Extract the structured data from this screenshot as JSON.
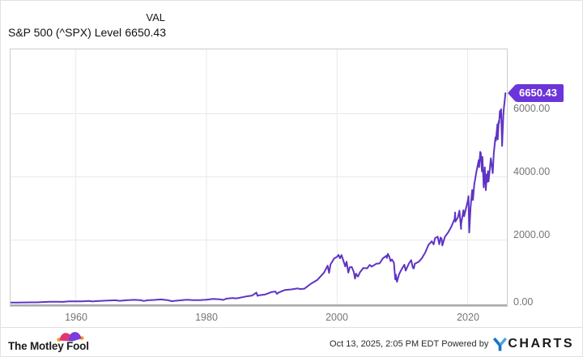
{
  "header": {
    "column_label": "VAL",
    "series_name": "S&P 500 (^SPX) Level",
    "value": "6650.43"
  },
  "footer": {
    "brand": "The Motley Fool",
    "timestamp": "Oct 13, 2025, 2:05 PM EDT",
    "powered_by": "Powered by",
    "ycharts_y": "Y",
    "ycharts_rest": "CHARTS"
  },
  "colors": {
    "line": "#5f34c4",
    "tag_bg": "#6c35d9",
    "grid": "#e9e9e9",
    "plot_border": "#cccccc",
    "axis_line": "#aaaaaa",
    "axis_text": "#757575",
    "fool_pink": "#e2356f",
    "fool_purple": "#7d3bd8",
    "fool_gold": "#f9a11b",
    "ycharts_blue": "#1873c9"
  },
  "chart_data": {
    "type": "line",
    "title": "S&P 500 (^SPX) Level",
    "xlabel": "",
    "ylabel": "",
    "x_domain": [
      1950,
      2026
    ],
    "y_domain": [
      0,
      8100
    ],
    "x_ticks": [
      1960,
      1980,
      2000,
      2020
    ],
    "y_ticks": [
      0,
      2000,
      4000,
      6000
    ],
    "y_tick_labels": [
      "0.00",
      "2000.00",
      "4000.00",
      "6000.00"
    ],
    "grid": true,
    "legend": false,
    "last_value_label": "6650.43",
    "points": [
      [
        1950.0,
        16.9
      ],
      [
        1951.0,
        20.4
      ],
      [
        1952.0,
        23.8
      ],
      [
        1953.0,
        26.6
      ],
      [
        1954.0,
        24.8
      ],
      [
        1955.0,
        36.0
      ],
      [
        1956.0,
        45.5
      ],
      [
        1957.0,
        46.7
      ],
      [
        1958.0,
        40.0
      ],
      [
        1959.0,
        55.2
      ],
      [
        1960.0,
        59.9
      ],
      [
        1961.0,
        58.1
      ],
      [
        1962.0,
        71.6
      ],
      [
        1962.55,
        54.8
      ],
      [
        1963.0,
        63.1
      ],
      [
        1964.0,
        75.0
      ],
      [
        1965.0,
        84.8
      ],
      [
        1966.0,
        92.4
      ],
      [
        1966.75,
        73.2
      ],
      [
        1967.0,
        80.3
      ],
      [
        1968.0,
        96.5
      ],
      [
        1969.0,
        103.9
      ],
      [
        1970.0,
        92.1
      ],
      [
        1970.4,
        69.3
      ],
      [
        1971.0,
        92.2
      ],
      [
        1972.0,
        102.1
      ],
      [
        1973.0,
        118.1
      ],
      [
        1974.0,
        97.6
      ],
      [
        1974.75,
        62.3
      ],
      [
        1975.0,
        68.6
      ],
      [
        1976.0,
        90.2
      ],
      [
        1977.0,
        107.5
      ],
      [
        1978.0,
        95.1
      ],
      [
        1979.0,
        96.1
      ],
      [
        1980.0,
        107.9
      ],
      [
        1981.0,
        135.8
      ],
      [
        1982.0,
        122.6
      ],
      [
        1982.6,
        102.4
      ],
      [
        1983.0,
        140.6
      ],
      [
        1984.0,
        164.9
      ],
      [
        1984.5,
        150.0
      ],
      [
        1985.0,
        167.2
      ],
      [
        1986.0,
        211.3
      ],
      [
        1987.0,
        242.2
      ],
      [
        1987.65,
        336.8
      ],
      [
        1987.82,
        230.3
      ],
      [
        1988.0,
        247.1
      ],
      [
        1989.0,
        277.7
      ],
      [
        1990.0,
        353.4
      ],
      [
        1990.55,
        368.9
      ],
      [
        1990.8,
        295.5
      ],
      [
        1991.0,
        330.2
      ],
      [
        1992.0,
        417.1
      ],
      [
        1993.0,
        435.7
      ],
      [
        1994.0,
        466.5
      ],
      [
        1994.3,
        445.8
      ],
      [
        1995.0,
        459.3
      ],
      [
        1996.0,
        615.9
      ],
      [
        1997.0,
        740.7
      ],
      [
        1998.0,
        970.4
      ],
      [
        1998.55,
        1186.8
      ],
      [
        1998.78,
        959.4
      ],
      [
        1999.0,
        1229.2
      ],
      [
        1999.55,
        1418.8
      ],
      [
        2000.0,
        1469.3
      ],
      [
        2000.22,
        1527.5
      ],
      [
        2000.45,
        1420.6
      ],
      [
        2000.68,
        1520.8
      ],
      [
        2001.0,
        1320.3
      ],
      [
        2001.25,
        1160.3
      ],
      [
        2001.45,
        1312.8
      ],
      [
        2001.72,
        965.8
      ],
      [
        2001.95,
        1139.5
      ],
      [
        2002.25,
        1147.4
      ],
      [
        2002.55,
        989.8
      ],
      [
        2002.75,
        776.8
      ],
      [
        2002.9,
        936.3
      ],
      [
        2003.2,
        841.2
      ],
      [
        2003.5,
        974.5
      ],
      [
        2004.0,
        1111.9
      ],
      [
        2004.6,
        1101.7
      ],
      [
        2005.0,
        1211.9
      ],
      [
        2005.3,
        1156.9
      ],
      [
        2006.0,
        1248.3
      ],
      [
        2006.5,
        1260.0
      ],
      [
        2007.0,
        1418.3
      ],
      [
        2007.55,
        1503.4
      ],
      [
        2007.62,
        1433.1
      ],
      [
        2007.78,
        1565.2
      ],
      [
        2008.0,
        1468.4
      ],
      [
        2008.2,
        1330.6
      ],
      [
        2008.4,
        1385.6
      ],
      [
        2008.7,
        1282.8
      ],
      [
        2008.85,
        896.2
      ],
      [
        2008.92,
        752.4
      ],
      [
        2009.0,
        903.3
      ],
      [
        2009.18,
        676.5
      ],
      [
        2009.5,
        919.3
      ],
      [
        2010.0,
        1115.1
      ],
      [
        2010.3,
        1217.3
      ],
      [
        2010.5,
        1030.7
      ],
      [
        2011.0,
        1257.6
      ],
      [
        2011.35,
        1363.6
      ],
      [
        2011.6,
        1119.5
      ],
      [
        2011.75,
        1099.2
      ],
      [
        2011.9,
        1253.3
      ],
      [
        2012.0,
        1257.6
      ],
      [
        2012.5,
        1310.0
      ],
      [
        2013.0,
        1426.2
      ],
      [
        2013.5,
        1606.3
      ],
      [
        2014.0,
        1848.4
      ],
      [
        2014.5,
        1960.2
      ],
      [
        2014.78,
        1862.5
      ],
      [
        2015.0,
        2058.9
      ],
      [
        2015.4,
        2107.4
      ],
      [
        2015.65,
        1867.6
      ],
      [
        2015.85,
        2079.4
      ],
      [
        2016.0,
        2043.9
      ],
      [
        2016.12,
        1829.1
      ],
      [
        2016.5,
        2098.9
      ],
      [
        2017.0,
        2238.8
      ],
      [
        2017.5,
        2423.4
      ],
      [
        2018.0,
        2673.6
      ],
      [
        2018.08,
        2872.9
      ],
      [
        2018.12,
        2581.0
      ],
      [
        2018.5,
        2718.4
      ],
      [
        2018.73,
        2930.8
      ],
      [
        2018.98,
        2351.1
      ],
      [
        2019.0,
        2506.9
      ],
      [
        2019.35,
        2945.8
      ],
      [
        2019.45,
        2752.1
      ],
      [
        2020.0,
        3230.8
      ],
      [
        2020.12,
        3386.2
      ],
      [
        2020.23,
        2237.4
      ],
      [
        2020.45,
        3044.3
      ],
      [
        2020.68,
        3580.8
      ],
      [
        2020.8,
        3269.9
      ],
      [
        2021.0,
        3756.1
      ],
      [
        2021.35,
        4181.2
      ],
      [
        2021.7,
        4536.9
      ],
      [
        2021.75,
        4307.5
      ],
      [
        2021.92,
        4793.1
      ],
      [
        2022.0,
        4766.2
      ],
      [
        2022.18,
        4170.7
      ],
      [
        2022.25,
        4631.6
      ],
      [
        2022.45,
        3666.8
      ],
      [
        2022.62,
        4305.2
      ],
      [
        2022.78,
        3577.0
      ],
      [
        2022.92,
        4080.1
      ],
      [
        2023.0,
        3839.5
      ],
      [
        2023.1,
        4179.8
      ],
      [
        2023.2,
        3855.8
      ],
      [
        2023.55,
        4588.9
      ],
      [
        2023.83,
        4117.4
      ],
      [
        2024.0,
        4769.8
      ],
      [
        2024.25,
        5254.4
      ],
      [
        2024.32,
        5147.2
      ],
      [
        2024.55,
        5667.2
      ],
      [
        2024.6,
        5186.3
      ],
      [
        2024.75,
        5762.5
      ],
      [
        2024.8,
        5695.9
      ],
      [
        2024.93,
        6090.3
      ],
      [
        2025.0,
        5881.6
      ],
      [
        2025.12,
        6144.2
      ],
      [
        2025.2,
        5521.5
      ],
      [
        2025.27,
        4982.8
      ],
      [
        2025.45,
        5958.4
      ],
      [
        2025.55,
        6204.9
      ],
      [
        2025.65,
        6388.6
      ],
      [
        2025.7,
        6481.5
      ],
      [
        2025.78,
        6650.43
      ]
    ]
  }
}
